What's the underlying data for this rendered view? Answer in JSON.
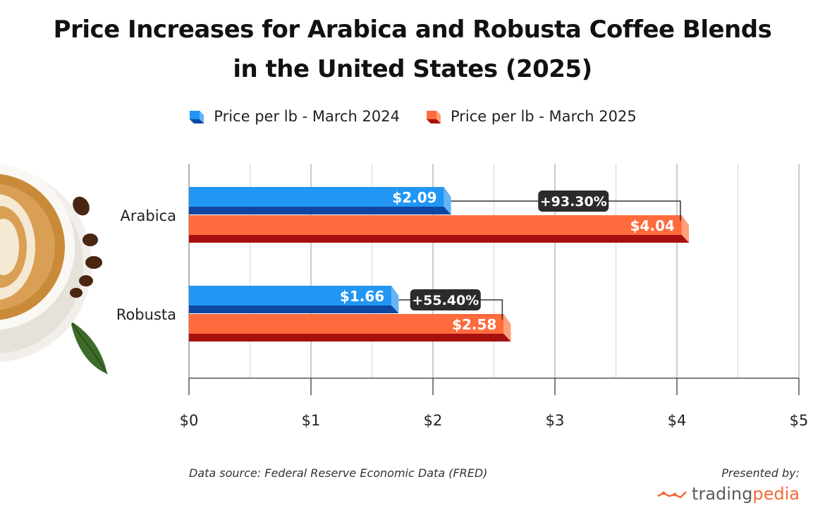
{
  "title_line1": "Price Increases for Arabica and Robusta Coffee Blends",
  "title_line2": "in the United States (2025)",
  "footer": {
    "source": "Data source: Federal Reserve Economic Data (FRED)",
    "presented_by": "Presented by:",
    "brand_part1": "trading",
    "brand_part2": "pedia"
  },
  "colors": {
    "series_2024": "#2196f3",
    "series_2024_dark": "#0d47a1",
    "series_2024_side": "#64b5f6",
    "series_2025": "#ff6b3d",
    "series_2025_dark": "#a80f0f",
    "series_2025_side": "#ffa07a",
    "callout": "#2b2b2b",
    "brand_orange": "#f26b3a"
  },
  "chart_data": {
    "type": "bar",
    "orientation": "horizontal",
    "title": "Price Increases for Arabica and Robusta Coffee Blends in the United States (2025)",
    "categories": [
      "Arabica",
      "Robusta"
    ],
    "series": [
      {
        "name": "Price per lb - March 2024",
        "values": [
          2.09,
          1.66
        ],
        "labels": [
          "$2.09",
          "$1.66"
        ]
      },
      {
        "name": "Price per lb - March 2025",
        "values": [
          4.04,
          2.58
        ],
        "labels": [
          "$4.04",
          "$2.58"
        ]
      }
    ],
    "changes": [
      "+93.30%",
      "+55.40%"
    ],
    "xlim": [
      0,
      5
    ],
    "xticks": [
      0,
      1,
      2,
      3,
      4,
      5
    ],
    "xtick_labels": [
      "$0",
      "$1",
      "$2",
      "$3",
      "$4",
      "$5"
    ],
    "xlabel": "",
    "ylabel": "",
    "grid": true,
    "legend_position": "top-center"
  }
}
